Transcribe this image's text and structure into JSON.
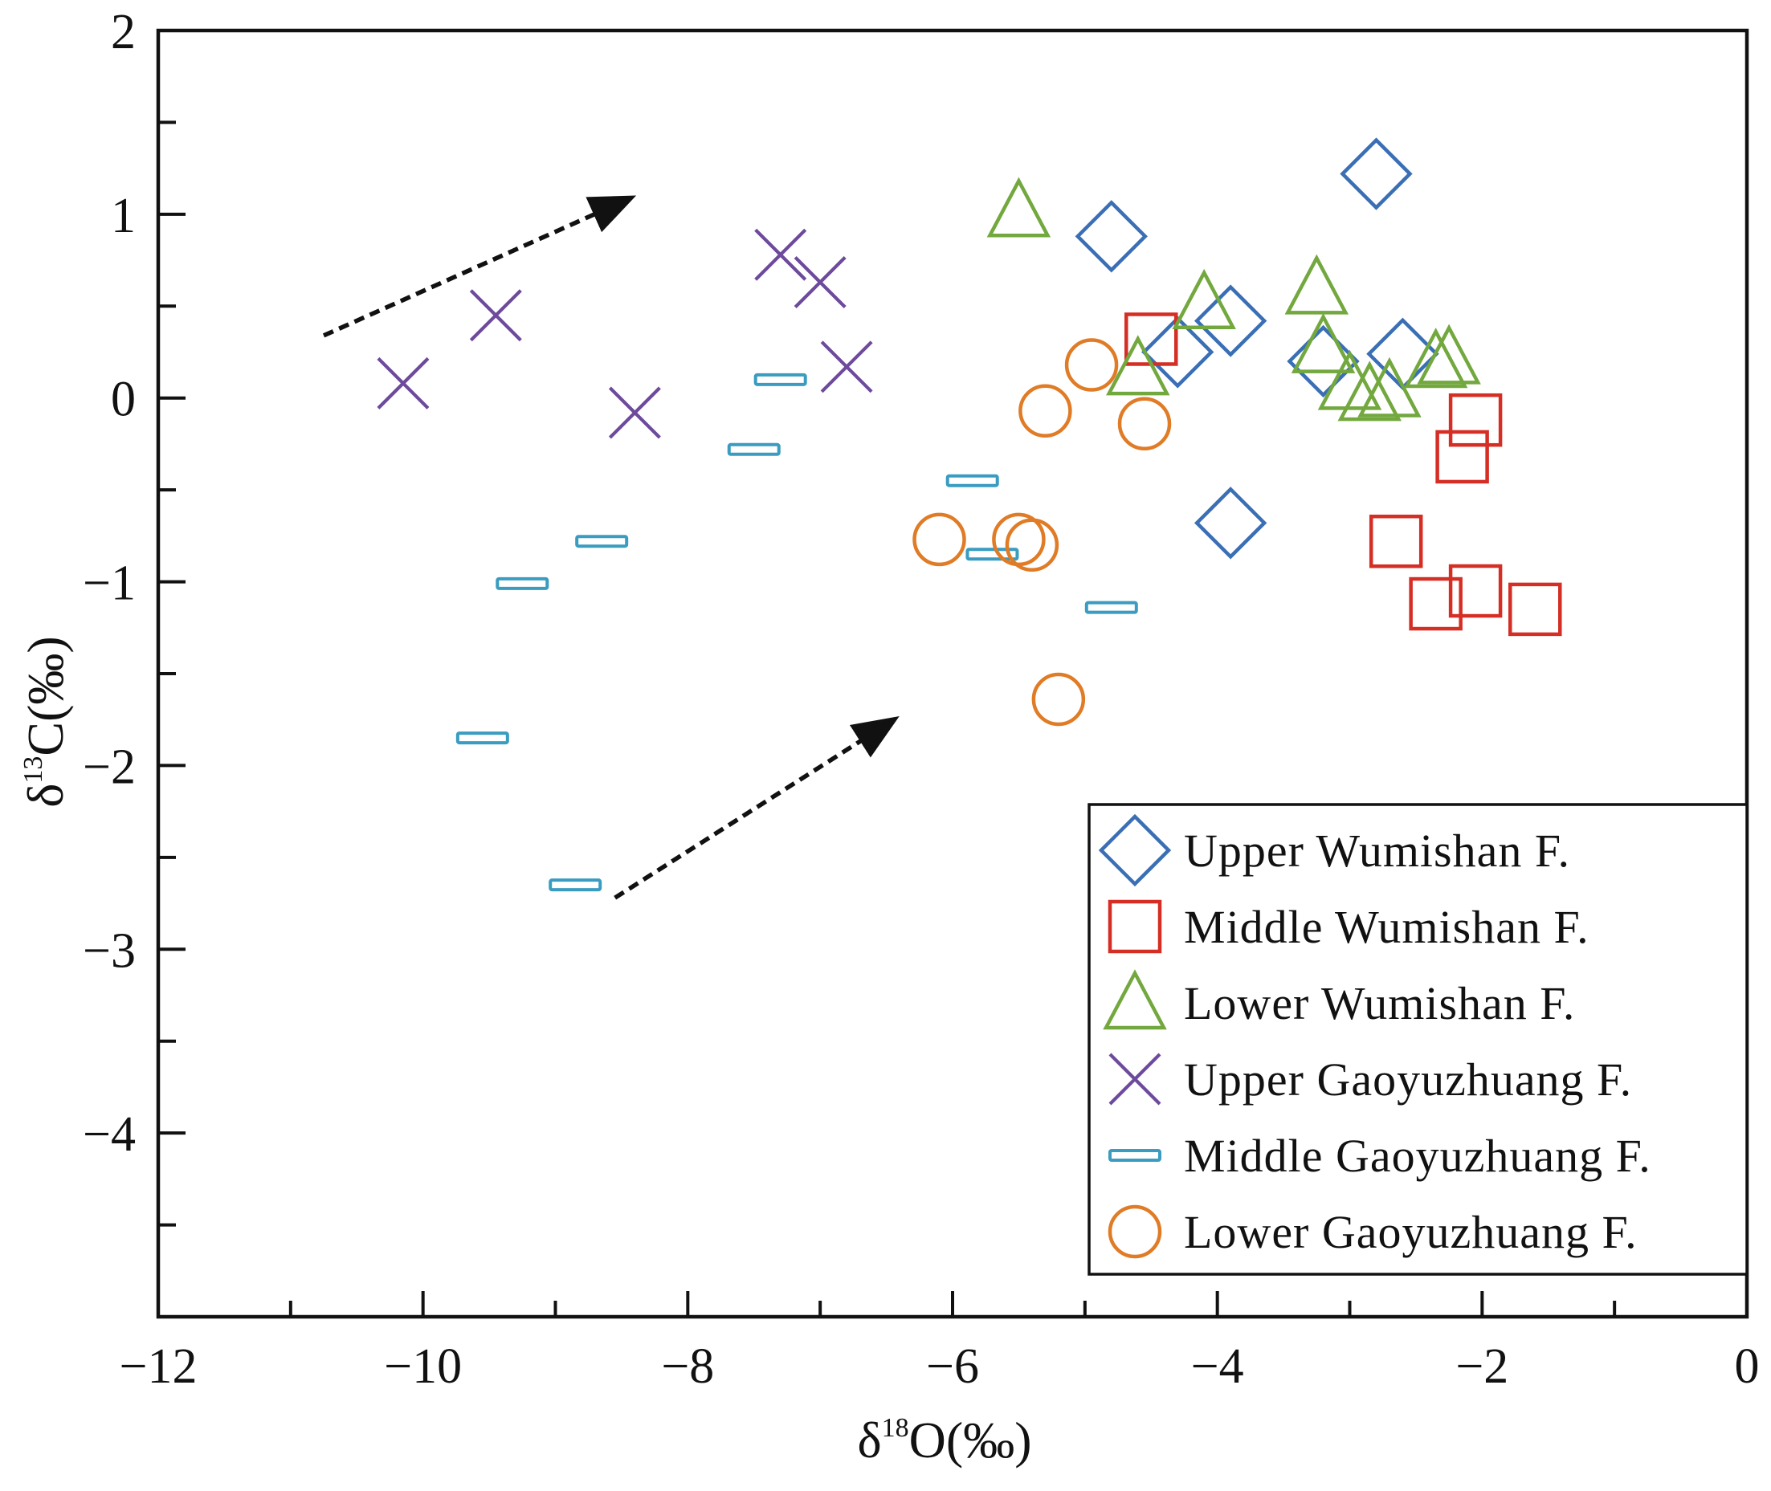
{
  "chart_data": {
    "type": "scatter",
    "title": "",
    "xlabel": {
      "main": "δ",
      "sup": "18",
      "rest": "O(‰)"
    },
    "ylabel": {
      "main": "δ",
      "sup": "13",
      "rest": "C(‰)"
    },
    "xlim": [
      -12,
      0
    ],
    "ylim": [
      -5,
      2
    ],
    "x_ticks": [
      -12,
      -10,
      -8,
      -6,
      -4,
      -2,
      0
    ],
    "x_tick_labels": [
      "−12",
      "−10",
      "−8",
      "−6",
      "−4",
      "−2",
      "0"
    ],
    "x_minor_step": 1,
    "y_ticks": [
      2,
      1,
      0,
      -1,
      -2,
      -3,
      -4
    ],
    "y_tick_labels": [
      "2",
      "1",
      "0",
      "−1",
      "−2",
      "−3",
      "−4"
    ],
    "y_minor_step": 0.5,
    "grid": false,
    "legend_position": "bottom-right",
    "series": [
      {
        "name": "Upper Wumishan F.",
        "marker": "diamond",
        "color": "#3a6fb5",
        "points": [
          [
            -2.8,
            1.22
          ],
          [
            -4.8,
            0.88
          ],
          [
            -3.9,
            0.42
          ],
          [
            -4.3,
            0.25
          ],
          [
            -3.2,
            0.2
          ],
          [
            -2.6,
            0.24
          ],
          [
            -3.9,
            -0.68
          ]
        ]
      },
      {
        "name": "Middle Wumishan F.",
        "marker": "square",
        "color": "#d42e25",
        "points": [
          [
            -4.5,
            0.32
          ],
          [
            -2.05,
            -0.12
          ],
          [
            -2.15,
            -0.32
          ],
          [
            -2.65,
            -0.78
          ],
          [
            -2.35,
            -1.12
          ],
          [
            -2.05,
            -1.05
          ],
          [
            -1.6,
            -1.15
          ]
        ]
      },
      {
        "name": "Lower Wumishan F.",
        "marker": "triangle",
        "color": "#72a83e",
        "points": [
          [
            -5.5,
            1.02
          ],
          [
            -4.1,
            0.52
          ],
          [
            -3.25,
            0.6
          ],
          [
            -3.2,
            0.28
          ],
          [
            -4.6,
            0.16
          ],
          [
            -3.0,
            0.08
          ],
          [
            -2.85,
            0.02
          ],
          [
            -2.7,
            0.04
          ],
          [
            -2.35,
            0.2
          ],
          [
            -2.25,
            0.22
          ]
        ]
      },
      {
        "name": "Upper Gaoyuzhuang F.",
        "marker": "x",
        "color": "#6d4a9c",
        "points": [
          [
            -10.15,
            0.08
          ],
          [
            -9.45,
            0.45
          ],
          [
            -8.4,
            -0.08
          ],
          [
            -7.3,
            0.78
          ],
          [
            -7.0,
            0.63
          ],
          [
            -6.8,
            0.17
          ]
        ]
      },
      {
        "name": "Middle Gaoyuzhuang F.",
        "marker": "bar",
        "color": "#3a9cc0",
        "points": [
          [
            -7.3,
            0.1
          ],
          [
            -7.5,
            -0.28
          ],
          [
            -5.85,
            -0.45
          ],
          [
            -8.65,
            -0.78
          ],
          [
            -9.25,
            -1.01
          ],
          [
            -5.7,
            -0.85
          ],
          [
            -4.8,
            -1.14
          ],
          [
            -9.55,
            -1.85
          ],
          [
            -8.85,
            -2.65
          ]
        ]
      },
      {
        "name": "Lower Gaoyuzhuang F.",
        "marker": "circle",
        "color": "#e07b26",
        "points": [
          [
            -6.1,
            -0.77
          ],
          [
            -5.5,
            -0.77
          ],
          [
            -5.4,
            -0.8
          ],
          [
            -5.3,
            -0.07
          ],
          [
            -4.95,
            0.18
          ],
          [
            -4.55,
            -0.14
          ],
          [
            -5.2,
            -1.64
          ]
        ]
      }
    ],
    "annotations": [
      {
        "type": "dashed-arrow",
        "from": [
          -10.75,
          0.34
        ],
        "to": [
          -8.55,
          1.05
        ]
      },
      {
        "type": "dashed-arrow",
        "from": [
          -8.55,
          -2.72
        ],
        "to": [
          -6.55,
          -1.8
        ]
      }
    ]
  }
}
